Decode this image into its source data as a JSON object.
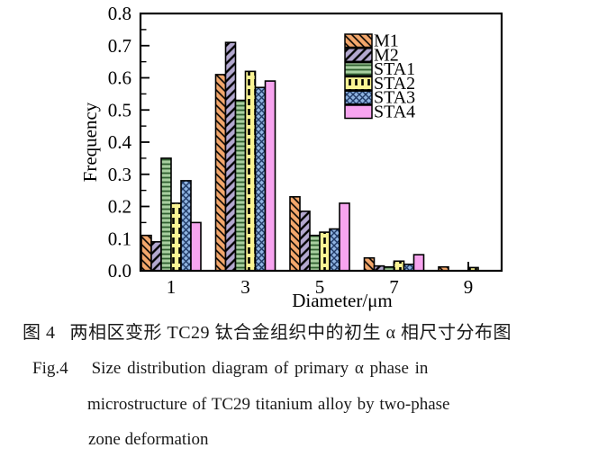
{
  "chart_data": {
    "type": "bar",
    "title": "",
    "xlabel": "Diameter/μm",
    "ylabel": "Frequency",
    "x": [
      1,
      3,
      5,
      7,
      9
    ],
    "xtick_labels": [
      "1",
      "3",
      "5",
      "7",
      "9"
    ],
    "ylim": [
      0,
      0.8
    ],
    "ytick_major_step": 0.1,
    "ytick_minor_step": 0.05,
    "grid": false,
    "legend_position": "upper-center-inside",
    "axis_color": "#000000",
    "series": [
      {
        "name": "M1",
        "color": "#F3A76C",
        "hatch": "diag-forward",
        "hatch_color": "#000000",
        "values": [
          0.11,
          0.61,
          0.23,
          0.04,
          0.012
        ]
      },
      {
        "name": "M2",
        "color": "#B3A8CF",
        "hatch": "diag-back",
        "hatch_color": "#000000",
        "values": [
          0.09,
          0.71,
          0.185,
          0.015,
          0
        ]
      },
      {
        "name": "STA1",
        "color": "#A8CFA0",
        "hatch": "horizontal",
        "hatch_color": "#2F5F2F",
        "values": [
          0.35,
          0.53,
          0.11,
          0.012,
          0
        ]
      },
      {
        "name": "STA2",
        "color": "#FAF494",
        "hatch": "vertical-dashed",
        "hatch_color": "#000000",
        "values": [
          0.21,
          0.62,
          0.12,
          0.03,
          0.01
        ]
      },
      {
        "name": "STA3",
        "color": "#8FB3E0",
        "hatch": "diag-cross",
        "hatch_color": "#203A66",
        "values": [
          0.28,
          0.57,
          0.13,
          0.02,
          0
        ]
      },
      {
        "name": "STA4",
        "color": "#F7A4EF",
        "hatch": "none",
        "hatch_color": "#000000",
        "values": [
          0.15,
          0.59,
          0.21,
          0.05,
          0
        ]
      }
    ]
  },
  "caption": {
    "zh_label": "图 4",
    "zh_text": "两相区变形 TC29 钛合金组织中的初生 α 相尺寸分布图",
    "en_label": "Fig.4",
    "en_line1": "Size distribution diagram of primary α phase in",
    "en_line2": "microstructure of TC29 titanium alloy by two-phase",
    "en_line3": "zone deformation"
  }
}
